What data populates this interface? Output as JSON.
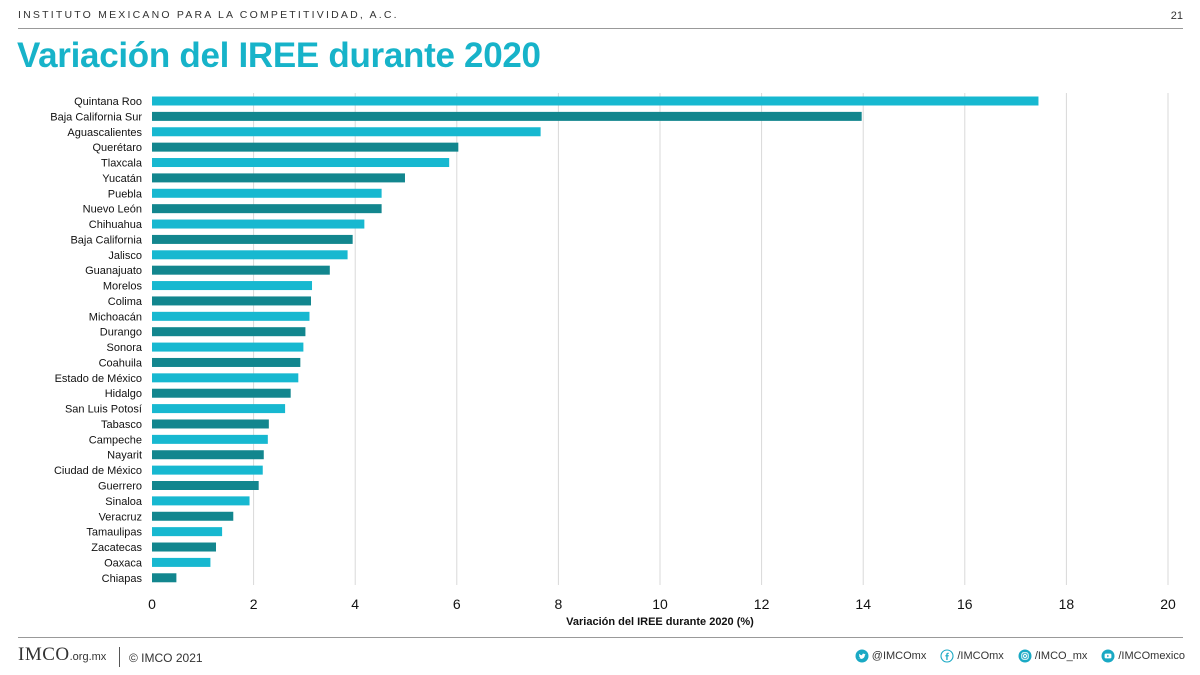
{
  "header": {
    "org_name": "INSTITUTO MEXICANO PARA LA COMPETITIVIDAD, A.C.",
    "slide_number": "21"
  },
  "title": "Variación del IREE durante 2020",
  "chart_data": {
    "type": "bar",
    "orientation": "horizontal",
    "categories": [
      "Quintana Roo",
      "Baja California Sur",
      "Aguascalientes",
      "Querétaro",
      "Tlaxcala",
      "Yucatán",
      "Puebla",
      "Nuevo León",
      "Chihuahua",
      "Baja California",
      "Jalisco",
      "Guanajuato",
      "Morelos",
      "Colima",
      "Michoacán",
      "Durango",
      "Sonora",
      "Coahuila",
      "Estado de México",
      "Hidalgo",
      "San Luis Potosí",
      "Tabasco",
      "Campeche",
      "Nayarit",
      "Ciudad de México",
      "Guerrero",
      "Sinaloa",
      "Veracruz",
      "Tamaulipas",
      "Zacatecas",
      "Oaxaca",
      "Chiapas"
    ],
    "values": [
      17.45,
      13.97,
      7.65,
      6.03,
      5.85,
      4.98,
      4.52,
      4.52,
      4.18,
      3.95,
      3.85,
      3.5,
      3.15,
      3.13,
      3.1,
      3.02,
      2.98,
      2.92,
      2.88,
      2.73,
      2.62,
      2.3,
      2.28,
      2.2,
      2.18,
      2.1,
      1.92,
      1.6,
      1.38,
      1.26,
      1.15,
      0.48
    ],
    "xlabel": "Variación del IREE durante 2020 (%)",
    "ylabel": "",
    "xlim": [
      0,
      20
    ],
    "ticks": [
      "0",
      "2",
      "4",
      "6",
      "8",
      "10",
      "12",
      "14",
      "16",
      "18",
      "20"
    ],
    "grid": "vertical",
    "colors": [
      "#17b8d0",
      "#12868e"
    ]
  },
  "footer": {
    "logo_text": "IMCO",
    "logo_domain": ".org.mx",
    "copyright": "© IMCO 2021",
    "socials": [
      {
        "icon": "twitter-icon",
        "label": "@IMCOmx"
      },
      {
        "icon": "facebook-icon",
        "label": "/IMCOmx"
      },
      {
        "icon": "instagram-icon",
        "label": "/IMCO_mx"
      },
      {
        "icon": "youtube-icon",
        "label": "/IMCOmexico"
      }
    ],
    "icon_color": "#1aa9c4"
  }
}
